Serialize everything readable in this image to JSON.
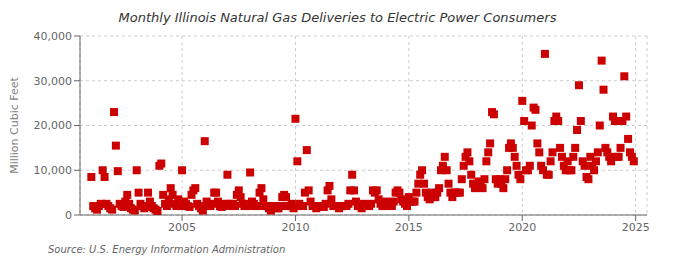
{
  "chart_data": {
    "type": "scatter",
    "title": "Monthly Illinois Natural Gas Deliveries to Electric Power Consumers",
    "y_label": "Million Cubic Feet",
    "annotations": [
      "Source: U.S. Energy Information Administration"
    ],
    "color": "#cc0000",
    "marker": "square",
    "grid": true,
    "xlim": [
      2000.5,
      2025.5
    ],
    "xticks": [
      2005,
      2010,
      2015,
      2020,
      2025
    ],
    "ylim": [
      0,
      40000
    ],
    "yticks": [
      0,
      {
        "value": 10000,
        "label": "10,000"
      },
      {
        "value": 20000,
        "label": "20,000"
      },
      {
        "value": 30000,
        "label": "30,000"
      },
      {
        "value": 40000,
        "label": "40,000"
      }
    ],
    "x": [
      2001.0,
      2001.083,
      2001.167,
      2001.25,
      2001.333,
      2001.417,
      2001.5,
      2001.583,
      2001.667,
      2001.75,
      2001.833,
      2001.917,
      2002.0,
      2002.083,
      2002.167,
      2002.25,
      2002.333,
      2002.417,
      2002.5,
      2002.583,
      2002.667,
      2002.75,
      2002.833,
      2002.917,
      2003.0,
      2003.083,
      2003.167,
      2003.25,
      2003.333,
      2003.417,
      2003.5,
      2003.583,
      2003.667,
      2003.75,
      2003.833,
      2003.917,
      2004.0,
      2004.083,
      2004.167,
      2004.25,
      2004.333,
      2004.417,
      2004.5,
      2004.583,
      2004.667,
      2004.75,
      2004.833,
      2004.917,
      2005.0,
      2005.083,
      2005.167,
      2005.25,
      2005.333,
      2005.417,
      2005.5,
      2005.583,
      2005.667,
      2005.75,
      2005.833,
      2005.917,
      2006.0,
      2006.083,
      2006.167,
      2006.25,
      2006.333,
      2006.417,
      2006.5,
      2006.583,
      2006.667,
      2006.75,
      2006.833,
      2006.917,
      2007.0,
      2007.083,
      2007.167,
      2007.25,
      2007.333,
      2007.417,
      2007.5,
      2007.583,
      2007.667,
      2007.75,
      2007.833,
      2007.917,
      2008.0,
      2008.083,
      2008.167,
      2008.25,
      2008.333,
      2008.417,
      2008.5,
      2008.583,
      2008.667,
      2008.75,
      2008.833,
      2008.917,
      2009.0,
      2009.083,
      2009.167,
      2009.25,
      2009.333,
      2009.417,
      2009.5,
      2009.583,
      2009.667,
      2009.75,
      2009.833,
      2009.917,
      2010.0,
      2010.083,
      2010.167,
      2010.25,
      2010.333,
      2010.417,
      2010.5,
      2010.583,
      2010.667,
      2010.75,
      2010.833,
      2010.917,
      2011.0,
      2011.083,
      2011.167,
      2011.25,
      2011.333,
      2011.417,
      2011.5,
      2011.583,
      2011.667,
      2011.75,
      2011.833,
      2011.917,
      2012.0,
      2012.083,
      2012.167,
      2012.25,
      2012.333,
      2012.417,
      2012.5,
      2012.583,
      2012.667,
      2012.75,
      2012.833,
      2012.917,
      2013.0,
      2013.083,
      2013.167,
      2013.25,
      2013.333,
      2013.417,
      2013.5,
      2013.583,
      2013.667,
      2013.75,
      2013.833,
      2013.917,
      2014.0,
      2014.083,
      2014.167,
      2014.25,
      2014.333,
      2014.417,
      2014.5,
      2014.583,
      2014.667,
      2014.75,
      2014.833,
      2014.917,
      2015.0,
      2015.083,
      2015.167,
      2015.25,
      2015.333,
      2015.417,
      2015.5,
      2015.583,
      2015.667,
      2015.75,
      2015.833,
      2015.917,
      2016.0,
      2016.083,
      2016.167,
      2016.25,
      2016.333,
      2016.417,
      2016.5,
      2016.583,
      2016.667,
      2016.75,
      2016.833,
      2016.917,
      2017.0,
      2017.083,
      2017.167,
      2017.25,
      2017.333,
      2017.417,
      2017.5,
      2017.583,
      2017.667,
      2017.75,
      2017.833,
      2017.917,
      2018.0,
      2018.083,
      2018.167,
      2018.25,
      2018.333,
      2018.417,
      2018.5,
      2018.583,
      2018.667,
      2018.75,
      2018.833,
      2018.917,
      2019.0,
      2019.083,
      2019.167,
      2019.25,
      2019.333,
      2019.417,
      2019.5,
      2019.583,
      2019.667,
      2019.75,
      2019.833,
      2019.917,
      2020.0,
      2020.083,
      2020.167,
      2020.25,
      2020.333,
      2020.417,
      2020.5,
      2020.583,
      2020.667,
      2020.75,
      2020.833,
      2020.917,
      2021.0,
      2021.083,
      2021.167,
      2021.25,
      2021.333,
      2021.417,
      2021.5,
      2021.583,
      2021.667,
      2021.75,
      2021.833,
      2021.917,
      2022.0,
      2022.083,
      2022.167,
      2022.25,
      2022.333,
      2022.417,
      2022.5,
      2022.583,
      2022.667,
      2022.75,
      2022.833,
      2022.917,
      2023.0,
      2023.083,
      2023.167,
      2023.25,
      2023.333,
      2023.417,
      2023.5,
      2023.583,
      2023.667,
      2023.75,
      2023.833,
      2023.917,
      2024.0,
      2024.083,
      2024.167,
      2024.25,
      2024.333,
      2024.417,
      2024.5,
      2024.583,
      2024.667,
      2024.75,
      2024.833,
      2024.917
    ],
    "values": [
      8500,
      2000,
      1500,
      1200,
      2000,
      2500,
      10000,
      8500,
      2500,
      2000,
      1500,
      1200,
      23000,
      15500,
      9800,
      2500,
      2000,
      1800,
      3000,
      4500,
      2500,
      1500,
      1200,
      1000,
      10000,
      5000,
      2500,
      2000,
      1500,
      1800,
      5000,
      3000,
      2000,
      1500,
      1200,
      900,
      11000,
      11500,
      4500,
      2500,
      2000,
      3500,
      6000,
      4500,
      2500,
      2000,
      3500,
      2000,
      10000,
      3000,
      2500,
      2000,
      1800,
      4500,
      5500,
      6000,
      2500,
      2000,
      1500,
      1000,
      16500,
      3000,
      2000,
      2000,
      2500,
      5000,
      5000,
      3000,
      2000,
      1800,
      2000,
      2500,
      9000,
      2500,
      2000,
      2500,
      2000,
      4500,
      5500,
      4000,
      2500,
      2000,
      2500,
      2000,
      9500,
      3000,
      2500,
      2000,
      2000,
      5000,
      6000,
      3500,
      2000,
      2000,
      1500,
      1000,
      2000,
      2000,
      1500,
      1500,
      2000,
      4000,
      4500,
      4000,
      2000,
      2000,
      2500,
      1500,
      21500,
      12000,
      2500,
      2000,
      2000,
      5000,
      14500,
      5500,
      3000,
      2000,
      2000,
      1500,
      2000,
      2000,
      2000,
      1800,
      2500,
      5500,
      6500,
      3500,
      2000,
      2000,
      2000,
      1500,
      2000,
      2000,
      2000,
      2000,
      2500,
      5500,
      9000,
      5500,
      3000,
      2000,
      2000,
      1500,
      2500,
      2000,
      2000,
      2000,
      2500,
      5500,
      5000,
      5500,
      3500,
      2500,
      2000,
      2000,
      3000,
      2500,
      2500,
      2000,
      3000,
      5000,
      5500,
      5000,
      3500,
      3000,
      2500,
      2000,
      4000,
      3000,
      3000,
      3000,
      5000,
      7000,
      9000,
      10000,
      7000,
      5000,
      4000,
      3500,
      5000,
      4000,
      4000,
      5000,
      6000,
      10000,
      11000,
      13000,
      10000,
      7000,
      5000,
      4000,
      5000,
      5000,
      5000,
      5000,
      8000,
      11000,
      13000,
      14000,
      12000,
      9000,
      7000,
      6000,
      7000,
      7500,
      7000,
      6000,
      8000,
      12000,
      14000,
      16000,
      23000,
      22500,
      8000,
      7000,
      8000,
      7000,
      6000,
      8000,
      10000,
      15000,
      16000,
      15000,
      13000,
      11000,
      9000,
      8000,
      25500,
      21000,
      10000,
      10000,
      11000,
      20000,
      24000,
      23500,
      16000,
      14000,
      11000,
      10000,
      36000,
      9000,
      9000,
      12000,
      14000,
      21000,
      22000,
      21000,
      15000,
      13000,
      11000,
      10000,
      12000,
      10000,
      10000,
      13000,
      15000,
      19000,
      29000,
      21000,
      12000,
      11000,
      8500,
      8000,
      13000,
      11000,
      10000,
      12000,
      14000,
      20000,
      34500,
      28000,
      15000,
      14000,
      13000,
      12000,
      22000,
      21000,
      13000,
      13000,
      15000,
      21000,
      31000,
      22000,
      17000,
      14000,
      13000,
      12000
    ]
  }
}
